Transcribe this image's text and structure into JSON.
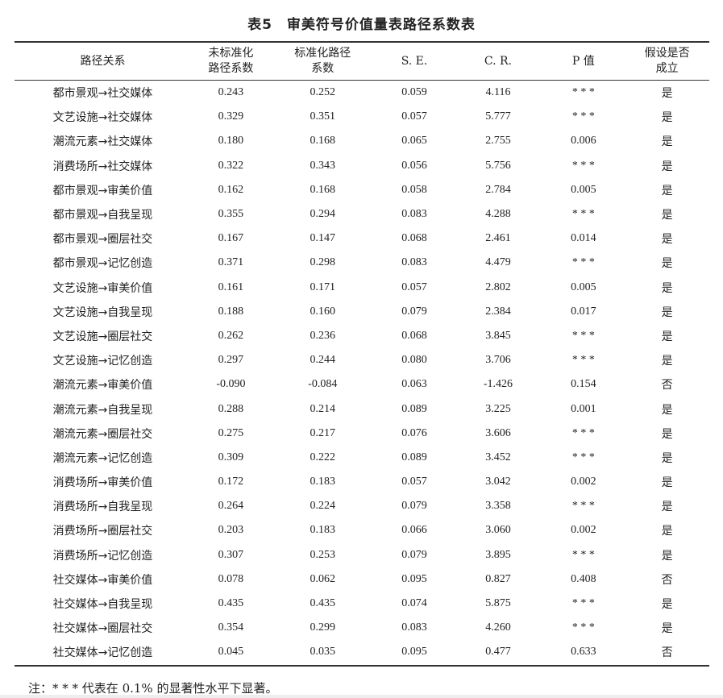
{
  "title": "表5　审美符号价值量表路径系数表",
  "headers": [
    "路径关系",
    "未标准化\n路径系数",
    "标准化路径\n系数",
    "S. E.",
    "C. R.",
    "P 值",
    "假设是否\n成立"
  ],
  "rows": [
    [
      "都市景观→社交媒体",
      "0.243",
      "0.252",
      "0.059",
      "4.116",
      "* * *",
      "是"
    ],
    [
      "文艺设施→社交媒体",
      "0.329",
      "0.351",
      "0.057",
      "5.777",
      "* * *",
      "是"
    ],
    [
      "潮流元素→社交媒体",
      "0.180",
      "0.168",
      "0.065",
      "2.755",
      "0.006",
      "是"
    ],
    [
      "消费场所→社交媒体",
      "0.322",
      "0.343",
      "0.056",
      "5.756",
      "* * *",
      "是"
    ],
    [
      "都市景观→审美价值",
      "0.162",
      "0.168",
      "0.058",
      "2.784",
      "0.005",
      "是"
    ],
    [
      "都市景观→自我呈现",
      "0.355",
      "0.294",
      "0.083",
      "4.288",
      "* * *",
      "是"
    ],
    [
      "都市景观→圈层社交",
      "0.167",
      "0.147",
      "0.068",
      "2.461",
      "0.014",
      "是"
    ],
    [
      "都市景观→记忆创造",
      "0.371",
      "0.298",
      "0.083",
      "4.479",
      "* * *",
      "是"
    ],
    [
      "文艺设施→审美价值",
      "0.161",
      "0.171",
      "0.057",
      "2.802",
      "0.005",
      "是"
    ],
    [
      "文艺设施→自我呈现",
      "0.188",
      "0.160",
      "0.079",
      "2.384",
      "0.017",
      "是"
    ],
    [
      "文艺设施→圈层社交",
      "0.262",
      "0.236",
      "0.068",
      "3.845",
      "* * *",
      "是"
    ],
    [
      "文艺设施→记忆创造",
      "0.297",
      "0.244",
      "0.080",
      "3.706",
      "* * *",
      "是"
    ],
    [
      "潮流元素→审美价值",
      "-0.090",
      "-0.084",
      "0.063",
      "-1.426",
      "0.154",
      "否"
    ],
    [
      "潮流元素→自我呈现",
      "0.288",
      "0.214",
      "0.089",
      "3.225",
      "0.001",
      "是"
    ],
    [
      "潮流元素→圈层社交",
      "0.275",
      "0.217",
      "0.076",
      "3.606",
      "* * *",
      "是"
    ],
    [
      "潮流元素→记忆创造",
      "0.309",
      "0.222",
      "0.089",
      "3.452",
      "* * *",
      "是"
    ],
    [
      "消费场所→审美价值",
      "0.172",
      "0.183",
      "0.057",
      "3.042",
      "0.002",
      "是"
    ],
    [
      "消费场所→自我呈现",
      "0.264",
      "0.224",
      "0.079",
      "3.358",
      "* * *",
      "是"
    ],
    [
      "消费场所→圈层社交",
      "0.203",
      "0.183",
      "0.066",
      "3.060",
      "0.002",
      "是"
    ],
    [
      "消费场所→记忆创造",
      "0.307",
      "0.253",
      "0.079",
      "3.895",
      "* * *",
      "是"
    ],
    [
      "社交媒体→审美价值",
      "0.078",
      "0.062",
      "0.095",
      "0.827",
      "0.408",
      "否"
    ],
    [
      "社交媒体→自我呈现",
      "0.435",
      "0.435",
      "0.074",
      "5.875",
      "* * *",
      "是"
    ],
    [
      "社交媒体→圈层社交",
      "0.354",
      "0.299",
      "0.083",
      "4.260",
      "* * *",
      "是"
    ],
    [
      "社交媒体→记忆创造",
      "0.045",
      "0.035",
      "0.095",
      "0.477",
      "0.633",
      "否"
    ]
  ],
  "note": "注：* * * 代表在 0.1% 的显著性水平下显著。"
}
